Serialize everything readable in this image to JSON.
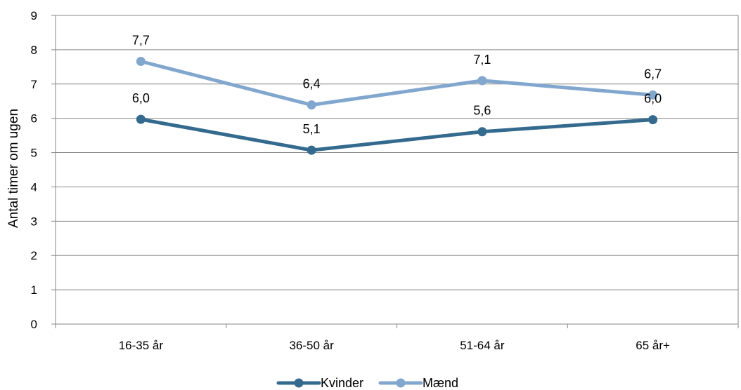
{
  "chart_data": {
    "type": "line",
    "categories": [
      "16-35 år",
      "36-50 år",
      "51-64 år",
      "65 år+"
    ],
    "series": [
      {
        "name": "Kvinder",
        "values": [
          5.97,
          5.07,
          5.61,
          5.96
        ],
        "labels": [
          "6,0",
          "5,1",
          "5,6",
          "6,0"
        ],
        "color": "#336a8e"
      },
      {
        "name": "Mænd",
        "values": [
          7.66,
          6.39,
          7.1,
          6.68
        ],
        "labels": [
          "7,7",
          "6,4",
          "7,1",
          "6,7"
        ],
        "color": "#82a7cf"
      }
    ],
    "xlabel": "",
    "ylabel": "Antal timer om ugen",
    "ylim": [
      0,
      9
    ],
    "yticks": [
      "0",
      "1",
      "2",
      "3",
      "4",
      "5",
      "6",
      "7",
      "8",
      "9"
    ],
    "grid": true,
    "legend": "bottom",
    "data_labels": "above"
  }
}
